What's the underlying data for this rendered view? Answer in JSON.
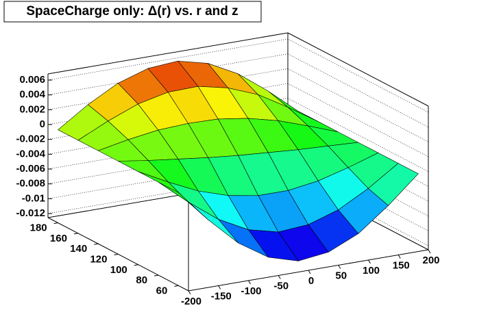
{
  "chart_data": {
    "type": "surface",
    "title": "SpaceCharge only: Δ(r) vs. r and z",
    "x": [
      -200,
      -150,
      -100,
      -50,
      0,
      50,
      100,
      150,
      200
    ],
    "y": [
      60,
      80,
      100,
      120,
      140,
      160,
      180
    ],
    "values": [
      [
        0,
        -0.0044,
        -0.0082,
        -0.0108,
        -0.012,
        -0.0115,
        -0.0097,
        -0.0066,
        -0.003
      ],
      [
        0,
        -0.0034,
        -0.0064,
        -0.0085,
        -0.0095,
        -0.0092,
        -0.0079,
        -0.0057,
        -0.003
      ],
      [
        0,
        -0.0021,
        -0.004,
        -0.0053,
        -0.006,
        -0.006,
        -0.0054,
        -0.0043,
        -0.003
      ],
      [
        0,
        -0.0006,
        -0.0011,
        -0.0016,
        -0.002,
        -0.0023,
        -0.0026,
        -0.0028,
        -0.003
      ],
      [
        0,
        0.0008,
        0.0014,
        0.0016,
        0.0015,
        0.0009,
        -0.0001,
        -0.0015,
        -0.003
      ],
      [
        0,
        0.0019,
        0.0035,
        0.0044,
        0.0045,
        0.0036,
        0.002,
        -0.0004,
        -0.003
      ],
      [
        0,
        0.0027,
        0.0049,
        0.0062,
        0.0065,
        0.0055,
        0.0034,
        0.0004,
        -0.003
      ]
    ],
    "xlim": [
      -200,
      200
    ],
    "ylim": [
      50,
      190
    ],
    "zlim": [
      -0.01255,
      0.00683
    ],
    "xticks": [
      -200,
      -150,
      -100,
      -50,
      0,
      50,
      100,
      150,
      200
    ],
    "yticks": [
      60,
      80,
      100,
      120,
      140,
      160,
      180
    ],
    "zticks": [
      -0.012,
      -0.01,
      -0.008,
      -0.006,
      -0.004,
      -0.002,
      0,
      0.002,
      0.004,
      0.006
    ],
    "grid": true
  }
}
